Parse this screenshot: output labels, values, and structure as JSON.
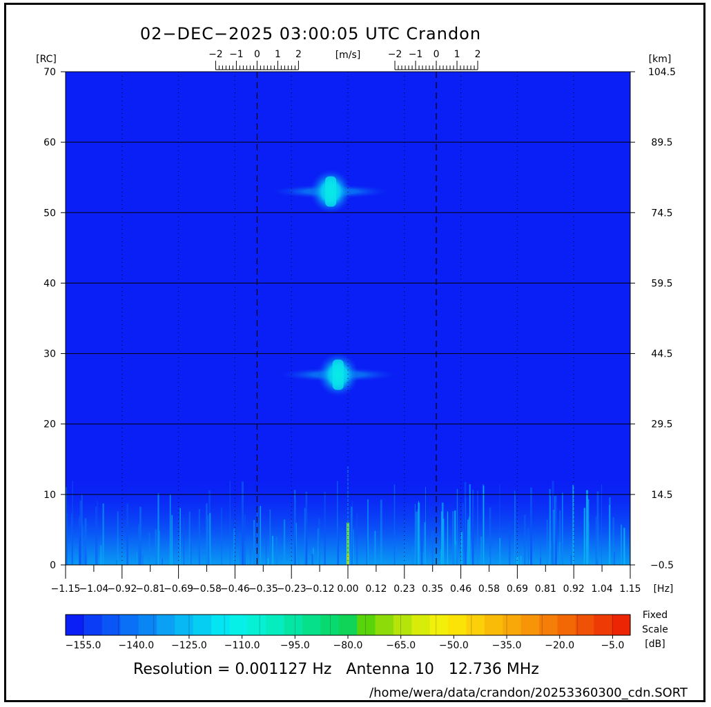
{
  "title": "02−DEC−2025 03:00:05 UTC   Crandon",
  "footer": {
    "resolution_line": "Resolution = 0.001127 Hz   Antenna 10   12.736 MHz",
    "path": "/home/wera/data/crandon/20253360300_cdn.SORT"
  },
  "chart_data": {
    "type": "heatmap",
    "title": "02−DEC−2025 03:00:05 UTC   Crandon",
    "x_unit_label": "[Hz]",
    "x_ticks": [
      "−1.15",
      "−1.04",
      "−0.92",
      "−0.81",
      "−0.69",
      "−0.58",
      "−0.46",
      "−0.35",
      "−0.23",
      "−0.12",
      "0.00",
      "0.12",
      "0.23",
      "0.35",
      "0.46",
      "0.58",
      "0.69",
      "0.81",
      "0.92",
      "1.04",
      "1.15"
    ],
    "xlim": [
      -1.15,
      1.15
    ],
    "y_left_label": "[RC]",
    "y_left_ticks": [
      "0",
      "10",
      "20",
      "30",
      "40",
      "50",
      "60",
      "70"
    ],
    "ylim": [
      0,
      70
    ],
    "y_right_label": "[km]",
    "y_right_ticks": [
      "−0.5",
      "14.5",
      "29.5",
      "44.5",
      "59.5",
      "74.5",
      "89.5",
      "104.5"
    ],
    "velocity_scale_label": "[m/s]",
    "velocity_ticks": [
      "−2",
      "−1",
      "0",
      "1",
      "2"
    ],
    "velocity_scale_centers_hz": [
      -0.37,
      0.36
    ],
    "bragg_lines_hz": [
      -0.37,
      0.36
    ],
    "grid": true,
    "background_level_db": -155,
    "features": [
      {
        "freq_hz": -0.07,
        "range_rc": 53,
        "level_db": -110
      },
      {
        "freq_hz": -0.04,
        "range_rc": 27,
        "level_db": -110
      },
      {
        "freq_hz": 0.0,
        "range_rc": 2,
        "level_db": -70
      }
    ],
    "noise_band_rc": [
      0,
      12
    ],
    "colorbar": {
      "ticks": [
        "−155.0",
        "−140.0",
        "−125.0",
        "−110.0",
        "−95.0",
        "−80.0",
        "−65.0",
        "−50.0",
        "−35.0",
        "−20.0",
        "−5.0"
      ],
      "range_db": [
        -160,
        0
      ],
      "label_lines": [
        "Fixed",
        "Scale",
        "[dB]"
      ],
      "colors": [
        "#0a1ff5",
        "#0b3cf6",
        "#0a55f6",
        "#0a70f6",
        "#0a85f4",
        "#0aa0f4",
        "#08b8f4",
        "#05cef2",
        "#05e4f2",
        "#06f0e8",
        "#05f0d5",
        "#05ecbe",
        "#05e6a5",
        "#06e08b",
        "#08da70",
        "#0fd458",
        "#5ad40a",
        "#8ddc0a",
        "#b4e40a",
        "#d8ec0a",
        "#f2f00a",
        "#fbe308",
        "#fbd008",
        "#f9bb08",
        "#f8a808",
        "#f89408",
        "#f57e08",
        "#f26805",
        "#f05205",
        "#ee3a05",
        "#ec2605"
      ]
    }
  }
}
